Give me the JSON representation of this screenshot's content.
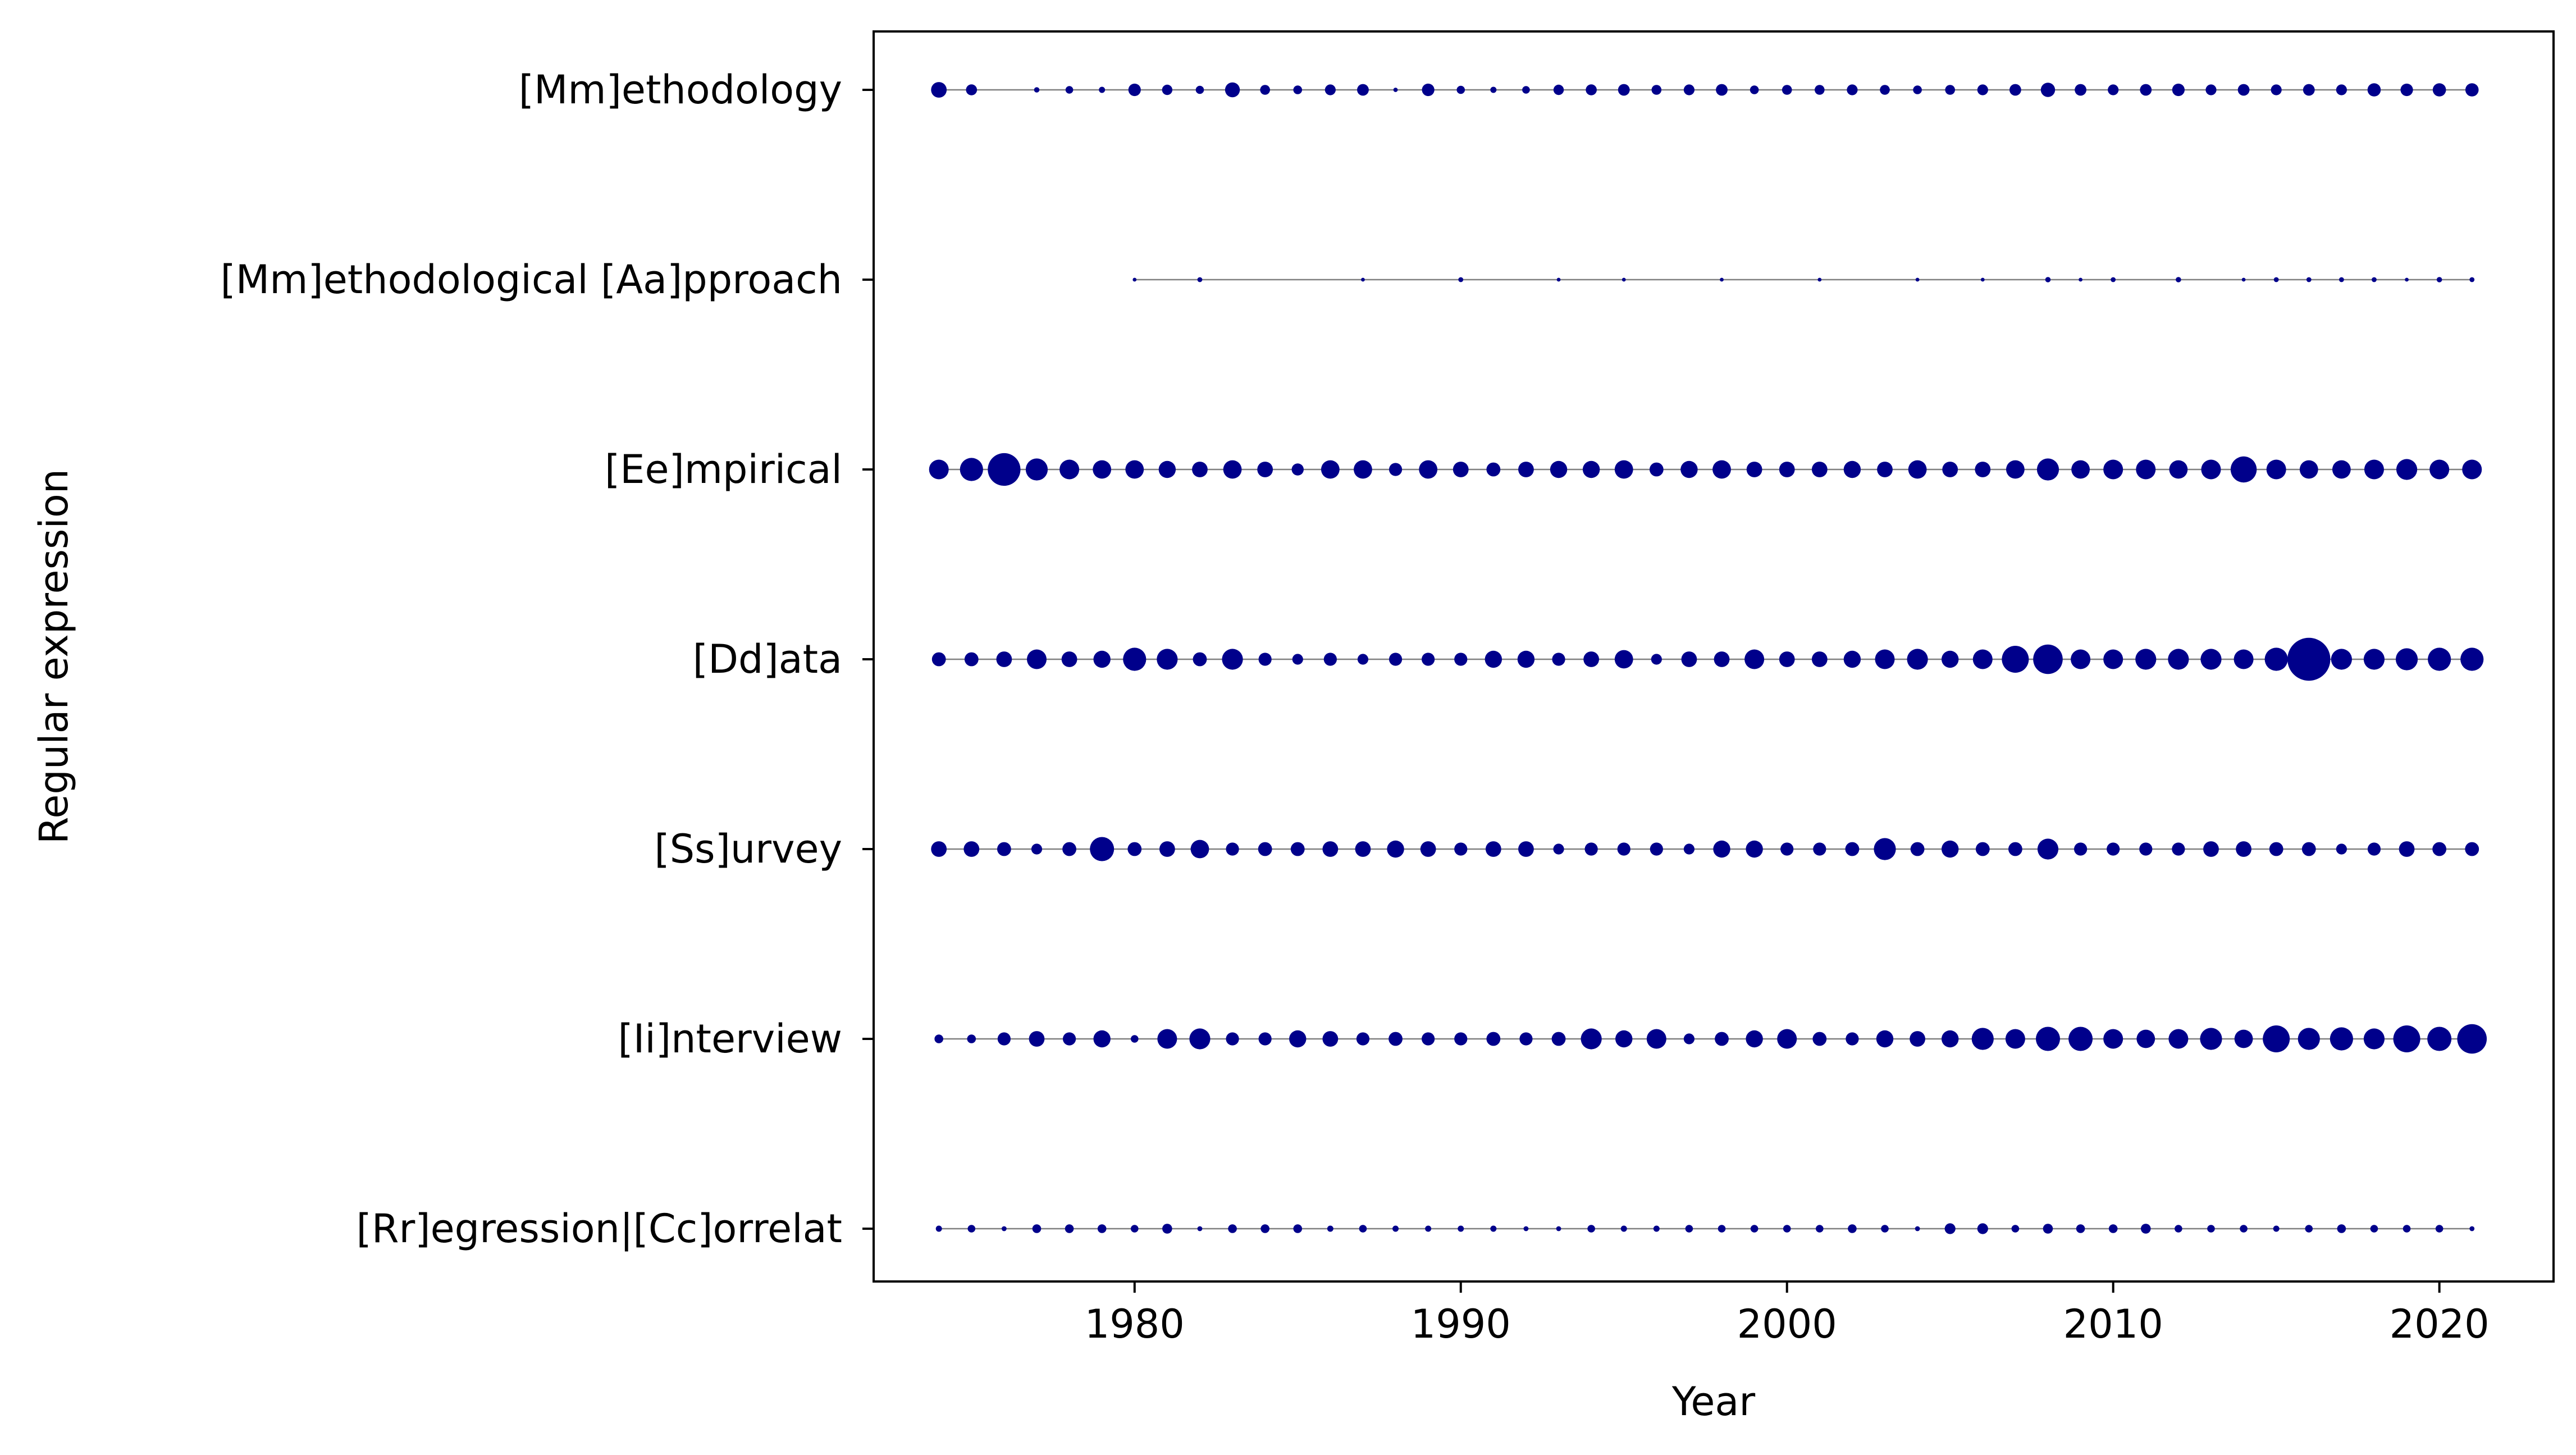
{
  "chart_data": {
    "type": "scatter",
    "title": "",
    "xlabel": "Year",
    "ylabel": "Regular expression",
    "xlim": [
      1972,
      2023.5
    ],
    "xticks": [
      1980,
      1990,
      2000,
      2010,
      2020
    ],
    "grid": false,
    "legend": "none",
    "colors": {
      "marker": "#00008b",
      "line": "#808080",
      "axes": "#000000",
      "background": "#ffffff"
    },
    "size_meaning": "relative frequency (marker area), estimated",
    "categories": [
      "[Mm]ethodology",
      "[Mm]ethodological [Aa]pproach",
      "[Ee]mpirical",
      "[Dd]ata",
      "[Ss]urvey",
      "[Ii]nterview",
      "[Rr]egression|[Cc]orrelat"
    ],
    "series": [
      {
        "category": "[Mm]ethodology",
        "points": [
          [
            1974,
            5
          ],
          [
            1975,
            2.5
          ],
          [
            1977,
            0.6
          ],
          [
            1978,
            1.2
          ],
          [
            1979,
            0.8
          ],
          [
            1980,
            3.2
          ],
          [
            1981,
            2.2
          ],
          [
            1982,
            1.4
          ],
          [
            1983,
            4.5
          ],
          [
            1984,
            2
          ],
          [
            1985,
            1.6
          ],
          [
            1986,
            2.4
          ],
          [
            1987,
            2.8
          ],
          [
            1988,
            0.4
          ],
          [
            1989,
            3.2
          ],
          [
            1990,
            1.4
          ],
          [
            1991,
            0.8
          ],
          [
            1992,
            1.2
          ],
          [
            1993,
            2.2
          ],
          [
            1994,
            2.5
          ],
          [
            1995,
            2.8
          ],
          [
            1996,
            2
          ],
          [
            1997,
            2.4
          ],
          [
            1998,
            2.8
          ],
          [
            1999,
            1.6
          ],
          [
            2000,
            2
          ],
          [
            2001,
            2
          ],
          [
            2002,
            2.4
          ],
          [
            2003,
            2
          ],
          [
            2004,
            1.6
          ],
          [
            2005,
            2
          ],
          [
            2006,
            2.4
          ],
          [
            2007,
            2.8
          ],
          [
            2008,
            4.2
          ],
          [
            2009,
            2.8
          ],
          [
            2010,
            2.4
          ],
          [
            2011,
            2.8
          ],
          [
            2012,
            3.2
          ],
          [
            2013,
            2.4
          ],
          [
            2014,
            2.8
          ],
          [
            2015,
            2.4
          ],
          [
            2016,
            2.8
          ],
          [
            2017,
            2.4
          ],
          [
            2018,
            3.6
          ],
          [
            2019,
            3.2
          ],
          [
            2020,
            3.6
          ],
          [
            2021,
            3.6
          ]
        ]
      },
      {
        "category": "[Mm]ethodological [Aa]pproach",
        "points": [
          [
            1980,
            0.3
          ],
          [
            1982,
            0.5
          ],
          [
            1987,
            0.3
          ],
          [
            1990,
            0.5
          ],
          [
            1993,
            0.3
          ],
          [
            1995,
            0.3
          ],
          [
            1998,
            0.3
          ],
          [
            2001,
            0.3
          ],
          [
            2004,
            0.3
          ],
          [
            2006,
            0.3
          ],
          [
            2008,
            0.6
          ],
          [
            2009,
            0.3
          ],
          [
            2010,
            0.5
          ],
          [
            2012,
            0.6
          ],
          [
            2014,
            0.3
          ],
          [
            2015,
            0.5
          ],
          [
            2016,
            0.5
          ],
          [
            2017,
            0.5
          ],
          [
            2018,
            0.5
          ],
          [
            2019,
            0.3
          ],
          [
            2020,
            0.6
          ],
          [
            2021,
            0.5
          ]
        ]
      },
      {
        "category": "[Ee]mpirical",
        "points": [
          [
            1974,
            8
          ],
          [
            1975,
            11
          ],
          [
            1976,
            22
          ],
          [
            1977,
            10
          ],
          [
            1978,
            8
          ],
          [
            1979,
            7
          ],
          [
            1980,
            7
          ],
          [
            1981,
            6
          ],
          [
            1982,
            5
          ],
          [
            1983,
            7
          ],
          [
            1984,
            5
          ],
          [
            1985,
            3
          ],
          [
            1986,
            7
          ],
          [
            1987,
            7
          ],
          [
            1988,
            3.5
          ],
          [
            1989,
            7
          ],
          [
            1990,
            5
          ],
          [
            1991,
            4
          ],
          [
            1992,
            5
          ],
          [
            1993,
            6
          ],
          [
            1994,
            6
          ],
          [
            1995,
            7
          ],
          [
            1996,
            4
          ],
          [
            1997,
            6
          ],
          [
            1998,
            7
          ],
          [
            1999,
            5
          ],
          [
            2000,
            5
          ],
          [
            2001,
            5
          ],
          [
            2002,
            6
          ],
          [
            2003,
            5
          ],
          [
            2004,
            7
          ],
          [
            2005,
            5
          ],
          [
            2006,
            5
          ],
          [
            2007,
            7
          ],
          [
            2008,
            10
          ],
          [
            2009,
            7
          ],
          [
            2010,
            8
          ],
          [
            2011,
            8
          ],
          [
            2012,
            7
          ],
          [
            2013,
            8
          ],
          [
            2014,
            14
          ],
          [
            2015,
            8
          ],
          [
            2016,
            7
          ],
          [
            2017,
            7
          ],
          [
            2018,
            8
          ],
          [
            2019,
            9
          ],
          [
            2020,
            8
          ],
          [
            2021,
            8
          ]
        ]
      },
      {
        "category": "[Dd]ata",
        "points": [
          [
            1974,
            4
          ],
          [
            1975,
            4
          ],
          [
            1976,
            5
          ],
          [
            1977,
            8
          ],
          [
            1978,
            5
          ],
          [
            1979,
            6
          ],
          [
            1980,
            11
          ],
          [
            1981,
            9
          ],
          [
            1982,
            4
          ],
          [
            1983,
            9
          ],
          [
            1984,
            3.5
          ],
          [
            1985,
            2.4
          ],
          [
            1986,
            3.5
          ],
          [
            1987,
            2.4
          ],
          [
            1988,
            3.5
          ],
          [
            1989,
            3.5
          ],
          [
            1990,
            3.5
          ],
          [
            1991,
            6
          ],
          [
            1992,
            6
          ],
          [
            1993,
            3.5
          ],
          [
            1994,
            5
          ],
          [
            1995,
            7
          ],
          [
            1996,
            2.4
          ],
          [
            1997,
            5
          ],
          [
            1998,
            5
          ],
          [
            1999,
            8
          ],
          [
            2000,
            5
          ],
          [
            2001,
            5
          ],
          [
            2002,
            6
          ],
          [
            2003,
            8
          ],
          [
            2004,
            9
          ],
          [
            2005,
            6
          ],
          [
            2006,
            8
          ],
          [
            2007,
            15
          ],
          [
            2008,
            18
          ],
          [
            2009,
            8
          ],
          [
            2010,
            8
          ],
          [
            2011,
            9
          ],
          [
            2012,
            9
          ],
          [
            2013,
            9
          ],
          [
            2014,
            8
          ],
          [
            2015,
            11
          ],
          [
            2016,
            38
          ],
          [
            2017,
            9
          ],
          [
            2018,
            9
          ],
          [
            2019,
            10
          ],
          [
            2020,
            11
          ],
          [
            2021,
            11
          ]
        ]
      },
      {
        "category": "[Ss]urvey",
        "points": [
          [
            1974,
            5
          ],
          [
            1975,
            5
          ],
          [
            1976,
            4
          ],
          [
            1977,
            2.4
          ],
          [
            1978,
            4
          ],
          [
            1979,
            12
          ],
          [
            1980,
            4
          ],
          [
            1981,
            5
          ],
          [
            1982,
            7
          ],
          [
            1983,
            3.5
          ],
          [
            1984,
            4
          ],
          [
            1985,
            4
          ],
          [
            1986,
            5
          ],
          [
            1987,
            5
          ],
          [
            1988,
            6
          ],
          [
            1989,
            5
          ],
          [
            1990,
            3.5
          ],
          [
            1991,
            5
          ],
          [
            1992,
            5
          ],
          [
            1993,
            2.4
          ],
          [
            1994,
            3.5
          ],
          [
            1995,
            3.5
          ],
          [
            1996,
            3.5
          ],
          [
            1997,
            2.4
          ],
          [
            1998,
            6
          ],
          [
            1999,
            6
          ],
          [
            2000,
            3.5
          ],
          [
            2001,
            3.5
          ],
          [
            2002,
            4
          ],
          [
            2003,
            10
          ],
          [
            2004,
            4
          ],
          [
            2005,
            6
          ],
          [
            2006,
            4
          ],
          [
            2007,
            4
          ],
          [
            2008,
            9
          ],
          [
            2009,
            3.5
          ],
          [
            2010,
            3.5
          ],
          [
            2011,
            3.5
          ],
          [
            2012,
            3.5
          ],
          [
            2013,
            5
          ],
          [
            2014,
            5
          ],
          [
            2015,
            4
          ],
          [
            2016,
            4
          ],
          [
            2017,
            2.4
          ],
          [
            2018,
            3.5
          ],
          [
            2019,
            5
          ],
          [
            2020,
            4
          ],
          [
            2021,
            4
          ]
        ]
      },
      {
        "category": "[Ii]nterview",
        "points": [
          [
            1974,
            1.6
          ],
          [
            1975,
            1.6
          ],
          [
            1976,
            3.5
          ],
          [
            1977,
            5
          ],
          [
            1978,
            3.5
          ],
          [
            1979,
            6
          ],
          [
            1980,
            1.2
          ],
          [
            1981,
            8
          ],
          [
            1982,
            9
          ],
          [
            1983,
            3.5
          ],
          [
            1984,
            3.5
          ],
          [
            1985,
            6
          ],
          [
            1986,
            5
          ],
          [
            1987,
            3.5
          ],
          [
            1988,
            4
          ],
          [
            1989,
            3.5
          ],
          [
            1990,
            3.5
          ],
          [
            1991,
            4
          ],
          [
            1992,
            3.5
          ],
          [
            1993,
            4
          ],
          [
            1994,
            9
          ],
          [
            1995,
            6
          ],
          [
            1996,
            8
          ],
          [
            1997,
            2.4
          ],
          [
            1998,
            4
          ],
          [
            1999,
            6
          ],
          [
            2000,
            8
          ],
          [
            2001,
            4
          ],
          [
            2002,
            3.5
          ],
          [
            2003,
            6
          ],
          [
            2004,
            5
          ],
          [
            2005,
            6
          ],
          [
            2006,
            10
          ],
          [
            2007,
            8
          ],
          [
            2008,
            12
          ],
          [
            2009,
            12
          ],
          [
            2010,
            8
          ],
          [
            2011,
            7
          ],
          [
            2012,
            8
          ],
          [
            2013,
            10
          ],
          [
            2014,
            7
          ],
          [
            2015,
            15
          ],
          [
            2016,
            10
          ],
          [
            2017,
            11
          ],
          [
            2018,
            9
          ],
          [
            2019,
            15
          ],
          [
            2020,
            12
          ],
          [
            2021,
            18
          ]
        ]
      },
      {
        "category": "[Rr]egression|[Cc]orrelat",
        "points": [
          [
            1974,
            0.8
          ],
          [
            1975,
            1.2
          ],
          [
            1976,
            0.5
          ],
          [
            1977,
            1.6
          ],
          [
            1978,
            1.6
          ],
          [
            1979,
            1.6
          ],
          [
            1980,
            1.2
          ],
          [
            1981,
            2
          ],
          [
            1982,
            0.5
          ],
          [
            1983,
            1.6
          ],
          [
            1984,
            1.6
          ],
          [
            1985,
            1.6
          ],
          [
            1986,
            0.8
          ],
          [
            1987,
            1.2
          ],
          [
            1988,
            0.8
          ],
          [
            1989,
            0.8
          ],
          [
            1990,
            0.8
          ],
          [
            1991,
            0.8
          ],
          [
            1992,
            0.5
          ],
          [
            1993,
            0.5
          ],
          [
            1994,
            1.2
          ],
          [
            1995,
            0.8
          ],
          [
            1996,
            0.8
          ],
          [
            1997,
            1.2
          ],
          [
            1998,
            1.2
          ],
          [
            1999,
            1.2
          ],
          [
            2000,
            1.2
          ],
          [
            2001,
            1.2
          ],
          [
            2002,
            1.6
          ],
          [
            2003,
            1.2
          ],
          [
            2004,
            0.5
          ],
          [
            2005,
            2.4
          ],
          [
            2006,
            2.4
          ],
          [
            2007,
            1.2
          ],
          [
            2008,
            2
          ],
          [
            2009,
            1.6
          ],
          [
            2010,
            1.6
          ],
          [
            2011,
            2
          ],
          [
            2012,
            1.2
          ],
          [
            2013,
            1.2
          ],
          [
            2014,
            1.2
          ],
          [
            2015,
            0.8
          ],
          [
            2016,
            1.2
          ],
          [
            2017,
            1.6
          ],
          [
            2018,
            1.2
          ],
          [
            2019,
            1.2
          ],
          [
            2020,
            1.2
          ],
          [
            2021,
            0.5
          ]
        ]
      }
    ]
  }
}
